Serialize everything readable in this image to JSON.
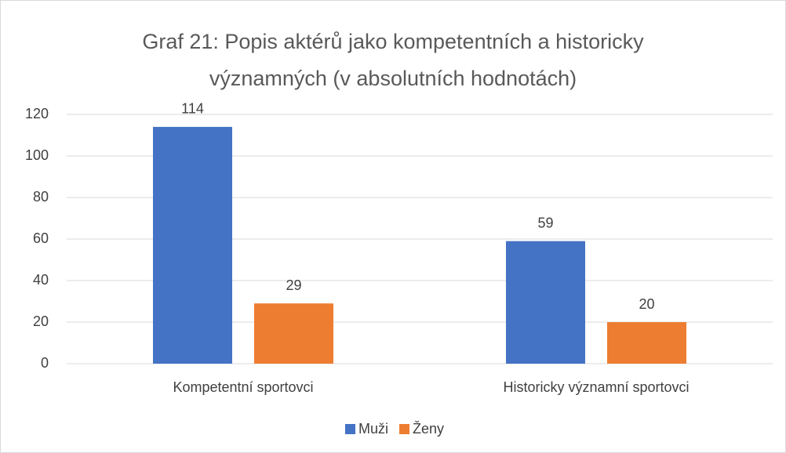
{
  "chart_data": {
    "type": "bar",
    "title": "Graf 21: Popis aktérů jako kompetentních a historicky významných (v absolutních hodnotách)",
    "categories": [
      "Kompetentní sportovci",
      "Historicky významní sportovci"
    ],
    "series": [
      {
        "name": "Muži",
        "color": "#4472c4",
        "values": [
          114,
          59
        ]
      },
      {
        "name": "Ženy",
        "color": "#ed7d31",
        "values": [
          29,
          20
        ]
      }
    ],
    "ylim": [
      0,
      120
    ],
    "yticks": [
      0,
      20,
      40,
      60,
      80,
      100,
      120
    ],
    "grid": true,
    "legend": "bottom"
  }
}
